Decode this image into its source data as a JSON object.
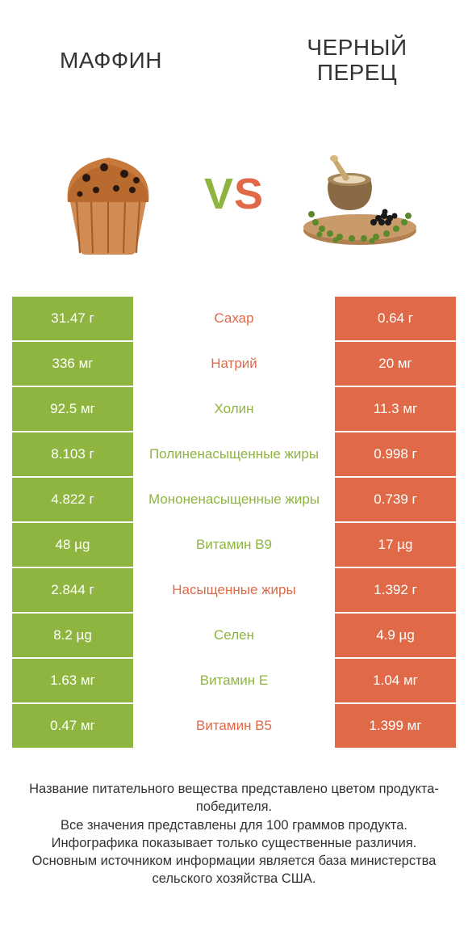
{
  "colors": {
    "green": "#8fb541",
    "orange": "#e06a48",
    "text": "#333333",
    "white": "#ffffff"
  },
  "header": {
    "left_title": "МАФФИН",
    "right_title": "ЧЕРНЫЙ\nПЕРЕЦ",
    "vs_v": "V",
    "vs_s": "S"
  },
  "rows": [
    {
      "left": "31.47 г",
      "mid": "Сахар",
      "right": "0.64 г",
      "mid_color": "#e06a48"
    },
    {
      "left": "336 мг",
      "mid": "Натрий",
      "right": "20 мг",
      "mid_color": "#e06a48"
    },
    {
      "left": "92.5 мг",
      "mid": "Холин",
      "right": "11.3 мг",
      "mid_color": "#8fb541"
    },
    {
      "left": "8.103 г",
      "mid": "Полиненасыщенные жиры",
      "right": "0.998 г",
      "mid_color": "#8fb541"
    },
    {
      "left": "4.822 г",
      "mid": "Мононенасыщенные жиры",
      "right": "0.739 г",
      "mid_color": "#8fb541"
    },
    {
      "left": "48 µg",
      "mid": "Витамин B9",
      "right": "17 µg",
      "mid_color": "#8fb541"
    },
    {
      "left": "2.844 г",
      "mid": "Насыщенные жиры",
      "right": "1.392 г",
      "mid_color": "#e06a48"
    },
    {
      "left": "8.2 µg",
      "mid": "Селен",
      "right": "4.9 µg",
      "mid_color": "#8fb541"
    },
    {
      "left": "1.63 мг",
      "mid": "Витамин E",
      "right": "1.04 мг",
      "mid_color": "#8fb541"
    },
    {
      "left": "0.47 мг",
      "mid": "Витамин B5",
      "right": "1.399 мг",
      "mid_color": "#e06a48"
    }
  ],
  "footer": {
    "line1": "Название питательного вещества представлено цветом продукта-победителя.",
    "line2": "Все значения представлены для 100 граммов продукта.",
    "line3": "Инфографика показывает только существенные различия.",
    "line4": "Основным источником информации является база министерства сельского хозяйства США."
  }
}
